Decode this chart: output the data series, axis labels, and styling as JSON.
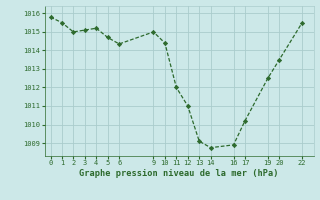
{
  "x": [
    0,
    1,
    2,
    3,
    4,
    5,
    6,
    9,
    10,
    11,
    12,
    13,
    14,
    16,
    17,
    19,
    20,
    22
  ],
  "y": [
    1015.8,
    1015.5,
    1015.0,
    1015.1,
    1015.2,
    1014.7,
    1014.35,
    1015.0,
    1014.4,
    1012.0,
    1011.0,
    1009.1,
    1008.75,
    1008.9,
    1010.2,
    1012.5,
    1013.5,
    1015.5
  ],
  "line_color": "#2d6a2d",
  "marker": "D",
  "marker_size": 2.2,
  "bg_color": "#cce8e8",
  "grid_color": "#aacccc",
  "xlabel": "Graphe pression niveau de la mer (hPa)",
  "xlabel_color": "#2d6a2d",
  "tick_color": "#2d6a2d",
  "xticks": [
    0,
    1,
    2,
    3,
    4,
    5,
    6,
    9,
    10,
    11,
    12,
    13,
    14,
    16,
    17,
    19,
    20,
    22
  ],
  "xtick_labels": [
    "0",
    "1",
    "2",
    "3",
    "4",
    "5",
    "6",
    "9",
    "10",
    "11",
    "12",
    "13",
    "14",
    "16",
    "17",
    "19",
    "20",
    "22"
  ],
  "yticks": [
    1009,
    1010,
    1011,
    1012,
    1013,
    1014,
    1015,
    1016
  ],
  "ylim": [
    1008.3,
    1016.4
  ],
  "xlim": [
    -0.5,
    23.0
  ],
  "line_width": 0.9,
  "tick_fontsize": 5.0,
  "xlabel_fontsize": 6.2
}
